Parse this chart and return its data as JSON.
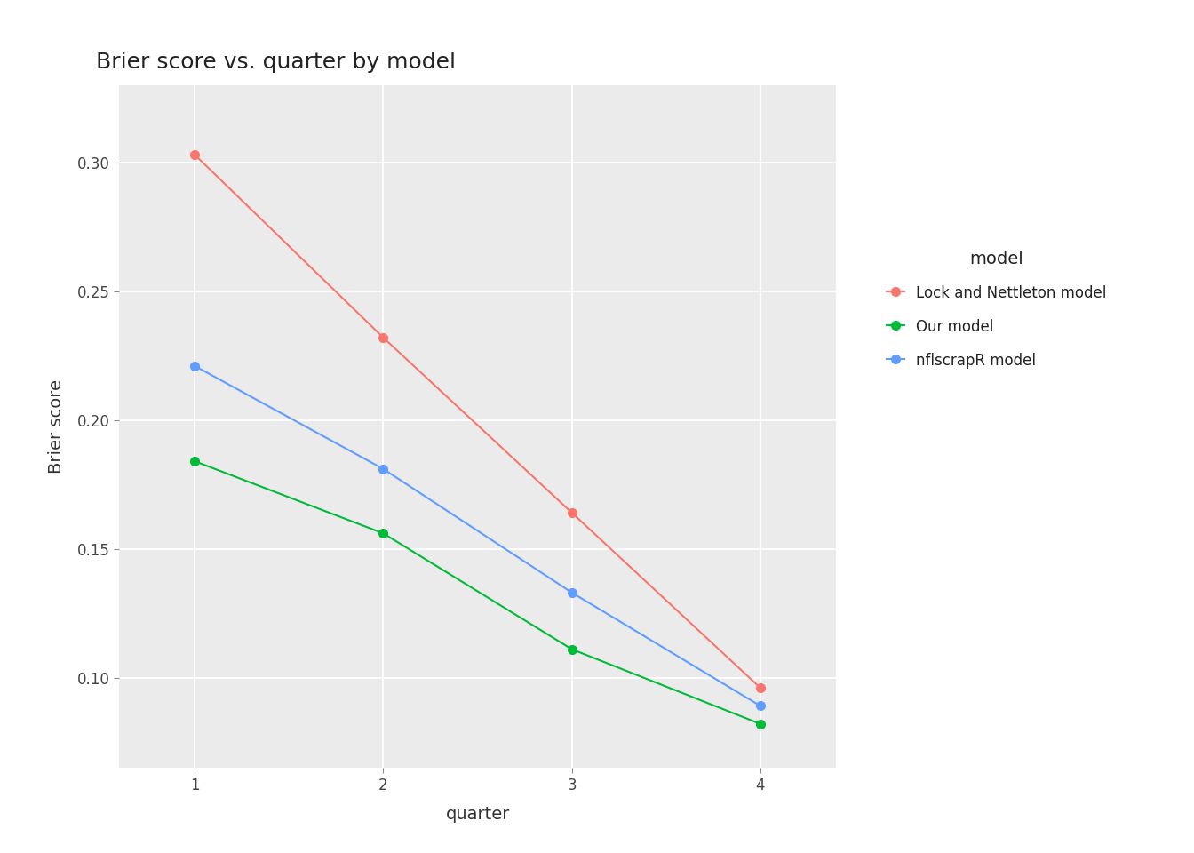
{
  "title": "Brier score vs. quarter by model",
  "xlabel": "quarter",
  "ylabel": "Brier score",
  "x": [
    1,
    2,
    3,
    4
  ],
  "series": [
    {
      "label": "Lock and Nettleton model",
      "y": [
        0.303,
        0.232,
        0.164,
        0.096
      ],
      "color": "#F8766D",
      "marker": "o",
      "markersize": 7
    },
    {
      "label": "Our model",
      "y": [
        0.184,
        0.156,
        0.111,
        0.082
      ],
      "color": "#00BA38",
      "marker": "o",
      "markersize": 7
    },
    {
      "label": "nflscrapR model",
      "y": [
        0.221,
        0.181,
        0.133,
        0.089
      ],
      "color": "#619CFF",
      "marker": "o",
      "markersize": 7
    }
  ],
  "xlim": [
    0.6,
    4.4
  ],
  "ylim": [
    0.065,
    0.33
  ],
  "yticks": [
    0.1,
    0.15,
    0.2,
    0.25,
    0.3
  ],
  "xticks": [
    1,
    2,
    3,
    4
  ],
  "background_color": "#EBEBEB",
  "grid_color": "#FFFFFF",
  "legend_title": "model",
  "legend_title_fontsize": 14,
  "legend_fontsize": 12,
  "title_fontsize": 18,
  "axis_label_fontsize": 14,
  "tick_fontsize": 12,
  "linewidth": 1.5
}
